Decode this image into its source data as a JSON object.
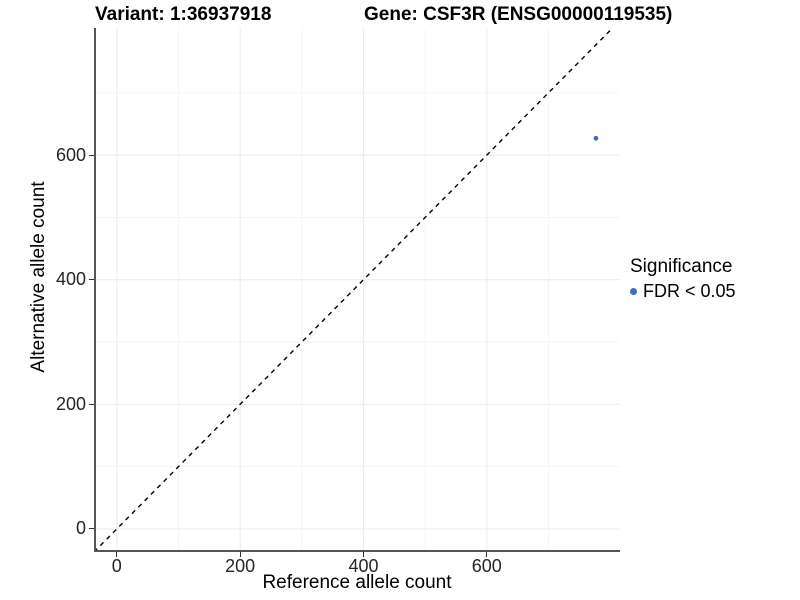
{
  "chart_data": {
    "type": "scatter",
    "title_left": "Variant: 1:36937918",
    "title_right": "Gene: CSF3R (ENSG00000119535)",
    "xlabel": "Reference allele count",
    "ylabel": "Alternative allele count",
    "xlim": [
      -37,
      816
    ],
    "ylim": [
      -37,
      804
    ],
    "x_breaks": [
      0,
      200,
      400,
      600
    ],
    "y_breaks": [
      0,
      200,
      400,
      600
    ],
    "x_minor_breaks": [
      100,
      300,
      500,
      700
    ],
    "y_minor_breaks": [
      100,
      300,
      500,
      700
    ],
    "grid": "major+minor",
    "points": [
      {
        "x": 777,
        "y": 627,
        "series": "FDR < 0.05"
      }
    ],
    "reference_line": {
      "kind": "identity",
      "slope": 1,
      "intercept": 0,
      "style": "dashed",
      "color": "#000000"
    },
    "legend": {
      "position": "right",
      "title": "Significance",
      "items": [
        {
          "label": "FDR < 0.05",
          "color": "#3d71ad"
        }
      ]
    },
    "colors": {
      "point": "#3d71ad",
      "grid_major": "#ebebeb",
      "grid_minor": "#f5f5f5",
      "axis_line": "#555555",
      "tick_mark": "#333333",
      "tick_label": "#262626"
    }
  }
}
